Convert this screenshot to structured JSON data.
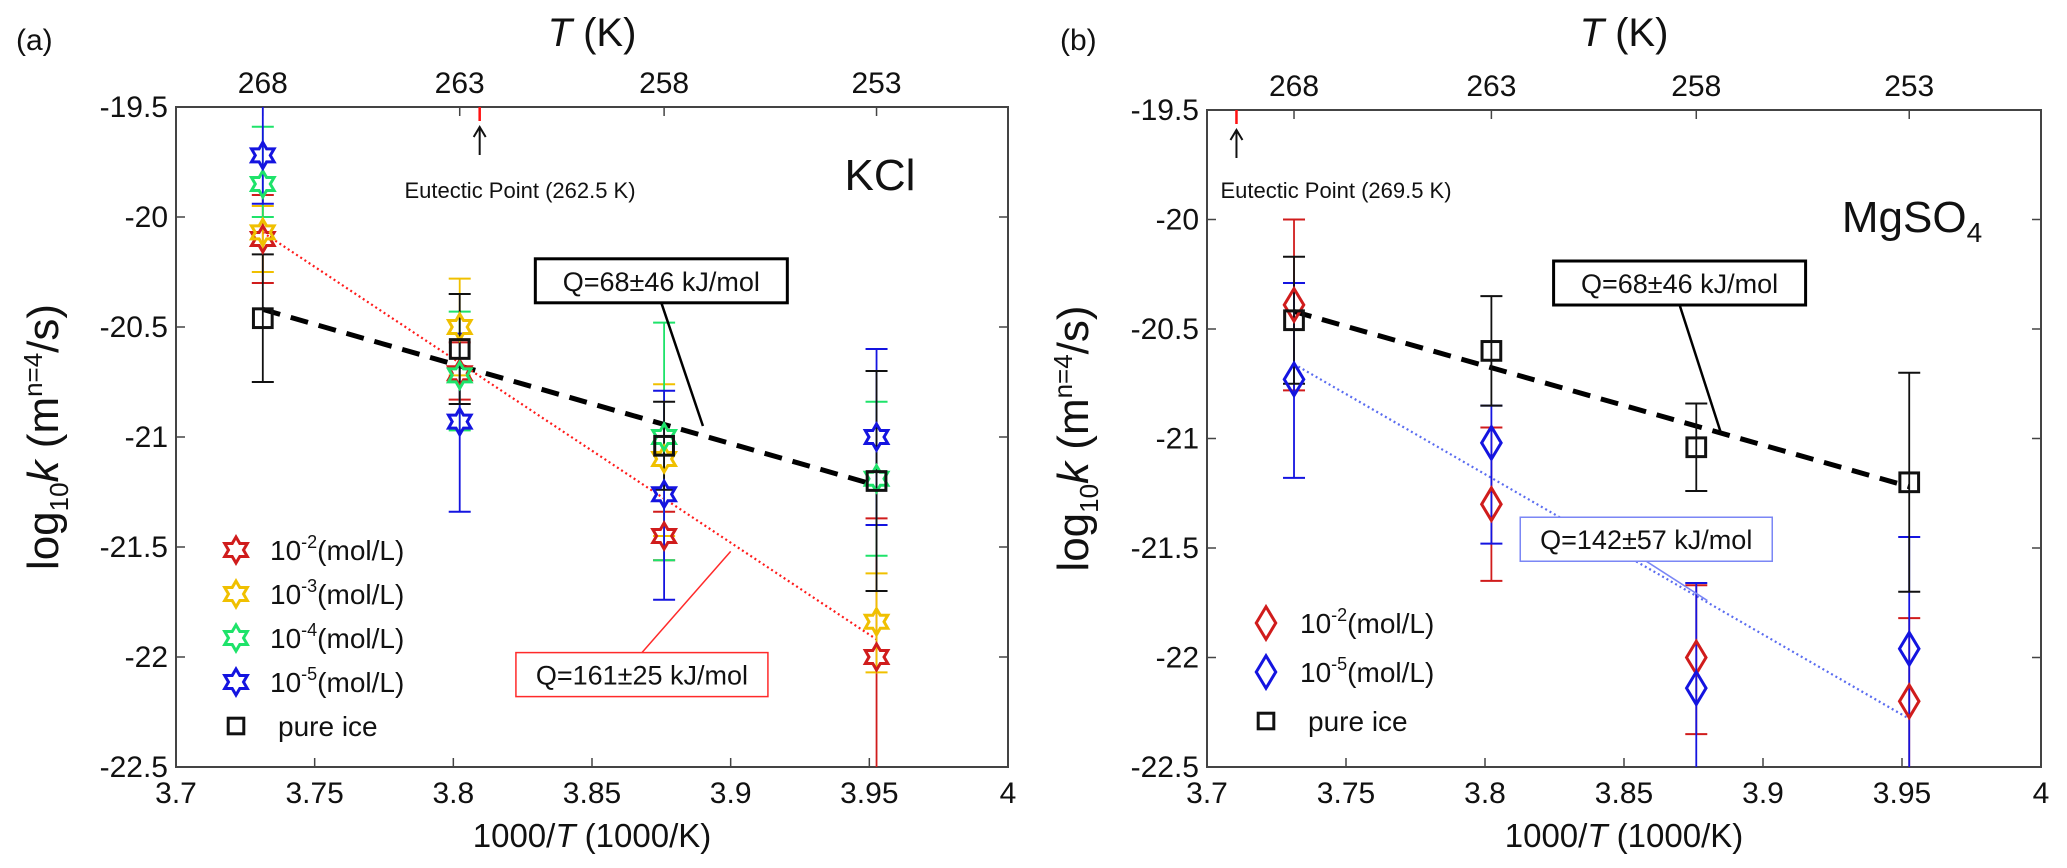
{
  "chart_data": [
    {
      "type": "scatter",
      "panel_label": "(a)",
      "salt": "KCl",
      "salt_sub": "",
      "top_axis_title": {
        "italic": "T",
        "rest": " (K)"
      },
      "top_ticks": [
        {
          "label": "268",
          "x": 3.7313
        },
        {
          "label": "263",
          "x": 3.8023
        },
        {
          "label": "258",
          "x": 3.876
        },
        {
          "label": "253",
          "x": 3.9526
        }
      ],
      "xlabel": {
        "pre": "1000/",
        "italic": "T",
        "post": " (1000/K)"
      },
      "ylabel": {
        "pre": "log",
        "sub": "10",
        "italic": "k",
        "post1": " (m",
        "sup": "n=4",
        "post2": "/s)"
      },
      "xlim": [
        3.7,
        4.0
      ],
      "ylim": [
        -22.5,
        -19.5
      ],
      "xticks": [
        3.7,
        3.75,
        3.8,
        3.85,
        3.9,
        3.95,
        4.0
      ],
      "xtick_labels": [
        "3.7",
        "3.75",
        "3.8",
        "3.85",
        "3.9",
        "3.95",
        "4"
      ],
      "yticks": [
        -19.5,
        -20,
        -20.5,
        -21,
        -21.5,
        -22,
        -22.5
      ],
      "ytick_labels": [
        "-19.5",
        "-20",
        "-20.5",
        "-21",
        "-21.5",
        "-22",
        "-22.5"
      ],
      "grid": false,
      "eutectic": {
        "x": 3.8095,
        "label": "Eutectic Point (262.5 K)"
      },
      "legend_position": "bottom-left",
      "series": [
        {
          "name": "10-2(mol/L)",
          "base": "10",
          "sup": "-2",
          "unit": "(mol/L)",
          "marker": "hexagram",
          "color": "#d01c1c",
          "x": [
            3.7313,
            3.8023,
            3.876,
            3.9526
          ],
          "y": [
            -20.1,
            -20.71,
            -21.45,
            -22.0
          ],
          "err_low": [
            -20.3,
            -20.83,
            -21.56,
            -22.5
          ],
          "err_high": [
            -19.9,
            -20.57,
            -21.34,
            -21.37
          ]
        },
        {
          "name": "10-3(mol/L)",
          "base": "10",
          "sup": "-3",
          "unit": "(mol/L)",
          "marker": "hexagram",
          "color": "#f0c000",
          "x": [
            3.7313,
            3.8023,
            3.876,
            3.9526
          ],
          "y": [
            -20.07,
            -20.5,
            -21.1,
            -21.84
          ],
          "err_low": [
            -20.25,
            -20.72,
            -21.45,
            -22.07
          ],
          "err_high": [
            -19.95,
            -20.28,
            -20.76,
            -21.62
          ]
        },
        {
          "name": "10-4(mol/L)",
          "base": "10",
          "sup": "-4",
          "unit": "(mol/L)",
          "marker": "hexagram",
          "color": "#1ee36a",
          "x": [
            3.7313,
            3.8023,
            3.876,
            3.9526
          ],
          "y": [
            -19.85,
            -20.72,
            -21.0,
            -21.19
          ],
          "err_low": [
            -20.0,
            -20.97,
            -21.56,
            -21.54
          ],
          "err_high": [
            -19.59,
            -20.43,
            -20.48,
            -20.84
          ]
        },
        {
          "name": "10-5(mol/L)",
          "base": "10",
          "sup": "-5",
          "unit": "(mol/L)",
          "marker": "hexagram",
          "color": "#1414e0",
          "x": [
            3.7313,
            3.8023,
            3.876,
            3.9526
          ],
          "y": [
            -19.72,
            -20.93,
            -21.26,
            -21.0
          ],
          "err_low": [
            -19.94,
            -21.34,
            -21.74,
            -21.4
          ],
          "err_high": [
            -19.5,
            -20.53,
            -20.79,
            -20.6
          ]
        },
        {
          "name": "pure ice",
          "marker": "square",
          "color": "#111111",
          "x": [
            3.7313,
            3.8023,
            3.876,
            3.9526
          ],
          "y": [
            -20.46,
            -20.6,
            -21.04,
            -21.2
          ],
          "err_low": [
            -20.75,
            -20.85,
            -21.24,
            -21.7
          ],
          "err_high": [
            -20.17,
            -20.35,
            -20.84,
            -20.7
          ]
        }
      ],
      "fits": [
        {
          "name": "pure ice fit",
          "style": "dashed",
          "color": "#000000",
          "x": [
            3.7313,
            3.9526
          ],
          "y": [
            -20.42,
            -21.22
          ],
          "label": "Q=68±46 kJ/mol",
          "label_pos": [
            3.875,
            -20.29
          ],
          "pointer": [
            3.89,
            -20.95
          ],
          "box_color": "#000000"
        },
        {
          "name": "10-2 fit",
          "style": "dotted",
          "color": "#ff1a1a",
          "x": [
            3.7313,
            3.9526
          ],
          "y": [
            -20.07,
            -21.92
          ],
          "label": "Q=161±25 kJ/mol",
          "label_pos": [
            3.868,
            -22.08
          ],
          "pointer": [
            3.9,
            -21.52
          ],
          "box_color": "#ff2a2a"
        }
      ]
    },
    {
      "type": "scatter",
      "panel_label": "(b)",
      "salt": "MgSO",
      "salt_sub": "4",
      "top_axis_title": {
        "italic": "T",
        "rest": " (K)"
      },
      "top_ticks": [
        {
          "label": "268",
          "x": 3.7313
        },
        {
          "label": "263",
          "x": 3.8023
        },
        {
          "label": "258",
          "x": 3.876
        },
        {
          "label": "253",
          "x": 3.9526
        }
      ],
      "xlabel": {
        "pre": "1000/",
        "italic": "T",
        "post": " (1000/K)"
      },
      "ylabel": {
        "pre": "log",
        "sub": "10",
        "italic": "k",
        "post1": " (m",
        "sup": "n=4",
        "post2": "/s)"
      },
      "xlim": [
        3.7,
        4.0
      ],
      "ylim": [
        -22.5,
        -19.5
      ],
      "xticks": [
        3.7,
        3.75,
        3.8,
        3.85,
        3.9,
        3.95,
        4.0
      ],
      "xtick_labels": [
        "3.7",
        "3.75",
        "3.8",
        "3.85",
        "3.9",
        "3.95",
        "4"
      ],
      "yticks": [
        -19.5,
        -20,
        -20.5,
        -21,
        -21.5,
        -22,
        -22.5
      ],
      "ytick_labels": [
        "-19.5",
        "-20",
        "-20.5",
        "-21",
        "-21.5",
        "-22",
        "-22.5"
      ],
      "grid": false,
      "eutectic": {
        "x": 3.7106,
        "label": "Eutectic Point (269.5 K)"
      },
      "legend_position": "bottom-left",
      "series": [
        {
          "name": "10-2(mol/L)",
          "base": "10",
          "sup": "-2",
          "unit": "(mol/L)",
          "marker": "diamond",
          "color": "#d01c1c",
          "x": [
            3.7313,
            3.8023,
            3.876,
            3.9526
          ],
          "y": [
            -20.39,
            -21.3,
            -22.0,
            -22.2
          ],
          "err_low": [
            -20.78,
            -21.65,
            -22.35,
            -22.5
          ],
          "err_high": [
            -20.0,
            -20.95,
            -21.67,
            -21.82
          ]
        },
        {
          "name": "10-5(mol/L)",
          "base": "10",
          "sup": "-5",
          "unit": "(mol/L)",
          "marker": "diamond",
          "color": "#1414e0",
          "x": [
            3.7313,
            3.8023,
            3.876,
            3.9526
          ],
          "y": [
            -20.73,
            -21.02,
            -22.14,
            -21.96
          ],
          "err_low": [
            -21.18,
            -21.48,
            -22.5,
            -22.5
          ],
          "err_high": [
            -20.29,
            -20.85,
            -21.66,
            -21.45
          ]
        },
        {
          "name": "pure ice",
          "marker": "square",
          "color": "#111111",
          "x": [
            3.7313,
            3.8023,
            3.876,
            3.9526
          ],
          "y": [
            -20.46,
            -20.6,
            -21.04,
            -21.2
          ],
          "err_low": [
            -20.75,
            -20.85,
            -21.24,
            -21.7
          ],
          "err_high": [
            -20.17,
            -20.35,
            -20.84,
            -20.7
          ]
        }
      ],
      "fits": [
        {
          "name": "pure ice fit",
          "style": "dashed",
          "color": "#000000",
          "x": [
            3.7313,
            3.9526
          ],
          "y": [
            -20.42,
            -21.22
          ],
          "label": "Q=68±46 kJ/mol",
          "label_pos": [
            3.87,
            -20.29
          ],
          "pointer": [
            3.885,
            -20.98
          ],
          "box_color": "#000000"
        },
        {
          "name": "10-5 fit",
          "style": "dotted",
          "color": "#5a6cf0",
          "x": [
            3.7313,
            3.9526
          ],
          "y": [
            -20.66,
            -22.28
          ],
          "label": "Q=142±57 kJ/mol",
          "label_pos": [
            3.858,
            -21.46
          ],
          "pointer": [
            3.88,
            -21.74
          ],
          "box_color": "#7a86f5"
        }
      ]
    }
  ]
}
